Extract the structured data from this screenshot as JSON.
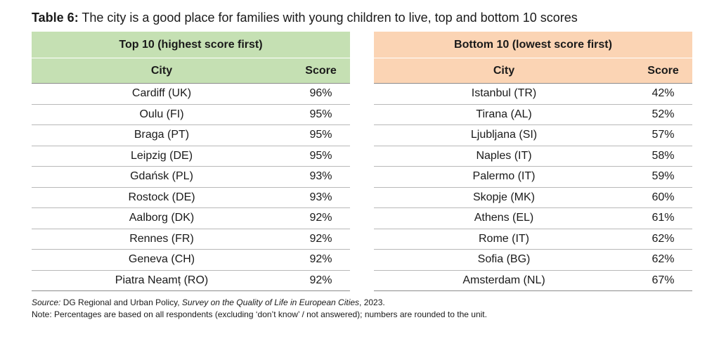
{
  "title": {
    "label": "Table 6:",
    "text": " The city is a good place for families with young children to live, top and bottom 10 scores"
  },
  "top": {
    "heading": "Top 10 (highest score first)",
    "col_city": "City",
    "col_score": "Score",
    "rows": [
      {
        "city": "Cardiff (UK)",
        "score": "96%"
      },
      {
        "city": "Oulu (FI)",
        "score": "95%"
      },
      {
        "city": "Braga (PT)",
        "score": "95%"
      },
      {
        "city": "Leipzig (DE)",
        "score": "95%"
      },
      {
        "city": "Gdańsk (PL)",
        "score": "93%"
      },
      {
        "city": "Rostock (DE)",
        "score": "93%"
      },
      {
        "city": "Aalborg (DK)",
        "score": "92%"
      },
      {
        "city": "Rennes (FR)",
        "score": "92%"
      },
      {
        "city": "Geneva (CH)",
        "score": "92%"
      },
      {
        "city": "Piatra Neamț (RO)",
        "score": "92%"
      }
    ]
  },
  "bottom": {
    "heading": "Bottom 10 (lowest score first)",
    "col_city": "City",
    "col_score": "Score",
    "rows": [
      {
        "city": "Istanbul (TR)",
        "score": "42%"
      },
      {
        "city": "Tirana (AL)",
        "score": "52%"
      },
      {
        "city": "Ljubljana (SI)",
        "score": "57%"
      },
      {
        "city": "Naples (IT)",
        "score": "58%"
      },
      {
        "city": "Palermo (IT)",
        "score": "59%"
      },
      {
        "city": "Skopje (MK)",
        "score": "60%"
      },
      {
        "city": "Athens (EL)",
        "score": "61%"
      },
      {
        "city": "Rome (IT)",
        "score": "62%"
      },
      {
        "city": "Sofia (BG)",
        "score": "62%"
      },
      {
        "city": "Amsterdam (NL)",
        "score": "67%"
      }
    ]
  },
  "source": {
    "label": "Source:",
    "text1": " DG Regional and Urban Policy, ",
    "survey": "Survey on the Quality of Life in European Cities",
    "text2": ", 2023.",
    "note": "Note: Percentages are based on all respondents (excluding ‘don’t know’ / not answered); numbers are rounded to the unit."
  },
  "colors": {
    "top_header_bg": "#c5e0b3",
    "bottom_header_bg": "#fbd4b4"
  }
}
